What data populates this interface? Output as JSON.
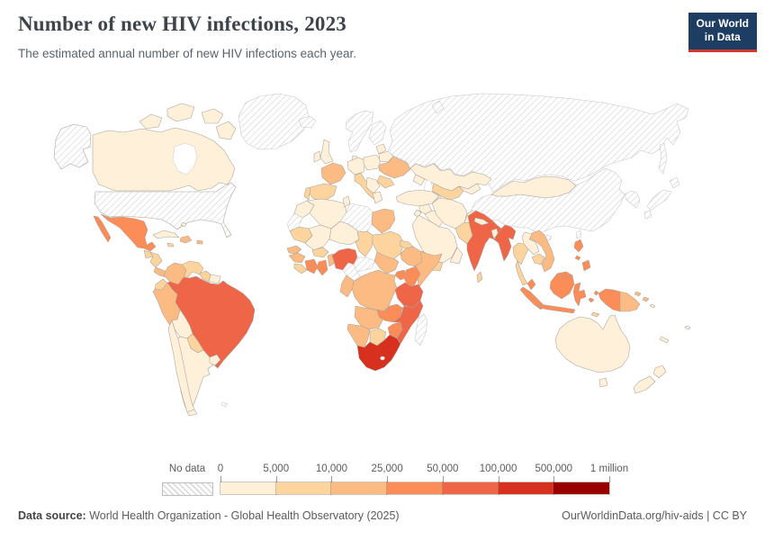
{
  "header": {
    "title": "Number of new HIV infections, 2023",
    "subtitle": "The estimated annual number of new HIV infections each year."
  },
  "logo": {
    "line1": "Our World",
    "line2": "in Data",
    "bg_color": "#1d3d63",
    "accent_color": "#d0392b"
  },
  "legend": {
    "no_data_label": "No data",
    "tick_labels": [
      "0",
      "5,000",
      "10,000",
      "25,000",
      "50,000",
      "100,000",
      "500,000",
      "1 million"
    ]
  },
  "footer": {
    "label": "Data source:",
    "source": " World Health Organization - Global Health Observatory (2025)",
    "right": "OurWorldinData.org/hiv-aids | CC BY"
  },
  "chart_data": {
    "type": "choropleth_map",
    "title": "Number of new HIV infections, 2023",
    "year": 2023,
    "bin_thresholds": [
      0,
      5000,
      10000,
      25000,
      50000,
      100000,
      500000,
      1000000
    ],
    "palette": [
      "#fef0d9",
      "#fdd49e",
      "#fdbb84",
      "#fc8d59",
      "#ef6548",
      "#d7301f",
      "#990000"
    ],
    "no_data_style": "hatched",
    "country_bins": {
      "United States": "no_data",
      "Canada": 0,
      "Greenland": "no_data",
      "Iceland": "no_data",
      "Mexico": 3,
      "Guatemala": 1,
      "Honduras and Nicaragua": 1,
      "Costa Rica and Panama": 2,
      "Cuba": 0,
      "Jamaica": 1,
      "Hispaniola": 2,
      "Puerto Rico": 2,
      "Bahamas": 0,
      "Colombia": 2,
      "Venezuela": 1,
      "Guyana": 1,
      "Suriname": 0,
      "Ecuador": 1,
      "Peru": 2,
      "Brazil": 4,
      "Bolivia": 0,
      "Paraguay": 1,
      "Chile": 0,
      "Argentina": 0,
      "Uruguay": 0,
      "Falkland Islands": "no_data",
      "United Kingdom": 0,
      "Ireland": 0,
      "Norway and Sweden": "no_data",
      "Finland": "no_data",
      "Denmark": 0,
      "Germany": 0,
      "France": 2,
      "Spain": 1,
      "Portugal": 1,
      "Italy": 1,
      "Poland": 0,
      "Baltic States": 0,
      "Belarus": 0,
      "Ukraine": 2,
      "Romania": 1,
      "Balkans": 0,
      "Greece": 0,
      "Russia": "no_data",
      "Kazakhstan": 0,
      "Uzbekistan": 1,
      "Turkmenistan": 0,
      "Kyrgyzstan and Tajikistan": 0,
      "Caucasus": 0,
      "Turkey": 0,
      "Syria": 0,
      "Iraq": 0,
      "Jordan": 0,
      "Saudi Arabia": 0,
      "Yemen": 1,
      "Oman": 0,
      "Iran": 0,
      "Afghanistan": 0,
      "Pakistan": 1,
      "India": 4,
      "Nepal": 0,
      "Bangladesh": 0,
      "Sri Lanka": 1,
      "Myanmar": 4,
      "Thailand": 1,
      "Laos": 0,
      "Vietnam": 2,
      "Cambodia": 1,
      "Malaysia": 3,
      "Indonesia": 3,
      "Timor": 1,
      "Papua New Guinea": 2,
      "Philippines": 3,
      "China": "no_data",
      "Mongolia": 0,
      "Korea": "no_data",
      "Japan": "no_data",
      "Taiwan": "no_data",
      "Australia": 0,
      "New Zealand": 0,
      "New Caledonia": 0,
      "Fiji": 0,
      "Solomon Islands": 0,
      "Morocco": 0,
      "Western Sahara": "no_data",
      "Algeria": 0,
      "Tunisia": 0,
      "Libya": "no_data",
      "Egypt": 2,
      "Mauritania": 1,
      "Mali": 0,
      "Niger": 0,
      "Chad": 1,
      "Sudan": 1,
      "Eritrea": 1,
      "Ethiopia": 2,
      "Somalia": 2,
      "Senegal": 2,
      "Guinea": 2,
      "Sierra Leone and Liberia": 1,
      "Cote d'Ivoire": 3,
      "Ghana": 3,
      "Burkina Faso": 1,
      "Benin and Togo": 2,
      "Nigeria": 4,
      "Cameroon": "no_data",
      "Central African Republic": "no_data",
      "South Sudan": 2,
      "Uganda": 3,
      "Kenya": 3,
      "DR Congo": 2,
      "Congo and Gabon": 2,
      "Tanzania": 4,
      "Angola": 2,
      "Zambia": 3,
      "Malawi": 3,
      "Mozambique": 4,
      "Zimbabwe": 3,
      "Namibia": 2,
      "Botswana": 1,
      "South Africa": 5,
      "Madagascar": "no_data"
    }
  }
}
